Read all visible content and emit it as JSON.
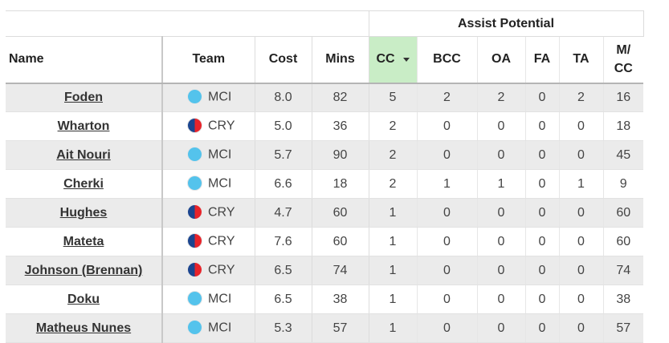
{
  "table": {
    "group_header": "Assist Potential",
    "columns": {
      "name": "Name",
      "team": "Team",
      "cost": "Cost",
      "mins": "Mins",
      "cc": "CC",
      "bcc": "BCC",
      "oa": "OA",
      "fa": "FA",
      "ta": "TA",
      "mcc_line1": "M/",
      "mcc_line2": "CC"
    },
    "sorted_column": "cc",
    "rows": [
      {
        "name": "Foden",
        "team": "MCI",
        "cost": "8.0",
        "mins": "82",
        "cc": "5",
        "bcc": "2",
        "oa": "2",
        "fa": "0",
        "ta": "2",
        "mcc": "16"
      },
      {
        "name": "Wharton",
        "team": "CRY",
        "cost": "5.0",
        "mins": "36",
        "cc": "2",
        "bcc": "0",
        "oa": "0",
        "fa": "0",
        "ta": "0",
        "mcc": "18"
      },
      {
        "name": "Ait Nouri",
        "team": "MCI",
        "cost": "5.7",
        "mins": "90",
        "cc": "2",
        "bcc": "0",
        "oa": "0",
        "fa": "0",
        "ta": "0",
        "mcc": "45"
      },
      {
        "name": "Cherki",
        "team": "MCI",
        "cost": "6.6",
        "mins": "18",
        "cc": "2",
        "bcc": "1",
        "oa": "1",
        "fa": "0",
        "ta": "1",
        "mcc": "9"
      },
      {
        "name": "Hughes",
        "team": "CRY",
        "cost": "4.7",
        "mins": "60",
        "cc": "1",
        "bcc": "0",
        "oa": "0",
        "fa": "0",
        "ta": "0",
        "mcc": "60"
      },
      {
        "name": "Mateta",
        "team": "CRY",
        "cost": "7.6",
        "mins": "60",
        "cc": "1",
        "bcc": "0",
        "oa": "0",
        "fa": "0",
        "ta": "0",
        "mcc": "60"
      },
      {
        "name": "Johnson (Brennan)",
        "team": "CRY",
        "cost": "6.5",
        "mins": "74",
        "cc": "1",
        "bcc": "0",
        "oa": "0",
        "fa": "0",
        "ta": "0",
        "mcc": "74"
      },
      {
        "name": "Doku",
        "team": "MCI",
        "cost": "6.5",
        "mins": "38",
        "cc": "1",
        "bcc": "0",
        "oa": "0",
        "fa": "0",
        "ta": "0",
        "mcc": "38"
      },
      {
        "name": "Matheus Nunes",
        "team": "MCI",
        "cost": "5.3",
        "mins": "57",
        "cc": "1",
        "bcc": "0",
        "oa": "0",
        "fa": "0",
        "ta": "0",
        "mcc": "57"
      }
    ]
  },
  "team_badges": {
    "MCI": {
      "icon": "mci-badge-icon",
      "colors": [
        "#54c3ec"
      ]
    },
    "CRY": {
      "icon": "cry-badge-icon",
      "colors": [
        "#1b458f",
        "#e8232a"
      ]
    }
  }
}
